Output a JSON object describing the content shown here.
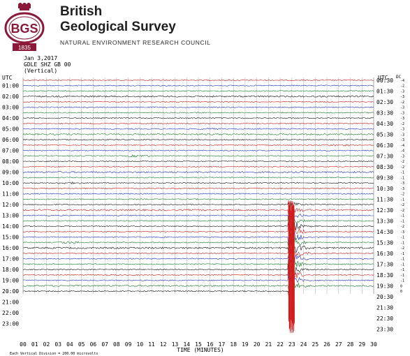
{
  "header": {
    "org_line1": "British",
    "org_line2": "Geological Survey",
    "subtitle": "NATURAL ENVIRONMENT RESEARCH COUNCIL",
    "logo_text": "BGS",
    "logo_year": "1835",
    "colors": {
      "logo": "#8b1a3a",
      "text": "#1f1f1f"
    }
  },
  "chart_data": {
    "type": "line",
    "title": "Jan 3,2017",
    "subtitle_lines": [
      "GDLE SHZ GB 00",
      "(Vertical)"
    ],
    "xlabel": "TIME (MINUTES)",
    "xlim": [
      0,
      30
    ],
    "x_ticks": [
      "00",
      "01",
      "02",
      "03",
      "04",
      "05",
      "06",
      "07",
      "08",
      "09",
      "10",
      "11",
      "12",
      "13",
      "14",
      "15",
      "16",
      "17",
      "18",
      "19",
      "20",
      "21",
      "22",
      "23",
      "24",
      "25",
      "26",
      "27",
      "28",
      "29",
      "30"
    ],
    "left_axis_title": "UTC",
    "right_axis_title": "UTC",
    "right_extra_title": "DC",
    "left_labels": [
      "",
      "01:00",
      "02:00",
      "03:00",
      "04:00",
      "05:00",
      "06:00",
      "07:00",
      "08:00",
      "09:00",
      "10:00",
      "11:00",
      "12:00",
      "13:00",
      "14:00",
      "15:00",
      "16:00",
      "17:00",
      "18:00",
      "19:00",
      "20:00",
      "21:00",
      "22:00",
      "23:00"
    ],
    "right_labels": [
      "00:30",
      "01:30",
      "02:30",
      "03:30",
      "04:30",
      "05:30",
      "06:30",
      "07:30",
      "08:30",
      "09:30",
      "10:30",
      "11:30",
      "12:30",
      "13:30",
      "14:30",
      "15:30",
      "16:30",
      "17:30",
      "18:30",
      "19:30",
      "20:30",
      "21:30",
      "22:30",
      "23:30"
    ],
    "dc_offsets": [
      "-4",
      "-2",
      "-3",
      "-3",
      "-2",
      "-3",
      "-3",
      "-3",
      "-2",
      "-3",
      "-3",
      "-3",
      "-4",
      "-4",
      "-3",
      "-2",
      "-2",
      "-1",
      "-1",
      "-3",
      "-3",
      "-2",
      "-1",
      "-2",
      "-2",
      "-1",
      "-1",
      "-2",
      "-3",
      "-1",
      "-1",
      "-2",
      "-1",
      "-1",
      "-1",
      "-1",
      "-1",
      "-1",
      "0",
      "0"
    ],
    "trace_colors": [
      "#d01c1c",
      "#1f2fbf",
      "#1a7a2a",
      "#111111"
    ],
    "trace_count": 40,
    "earthquake_event": {
      "trace_start": 23,
      "minute": 22.7,
      "peak_trace": 32
    },
    "footer_note": "Each Vertical Division = 200.00 microvolts",
    "grid": true
  }
}
